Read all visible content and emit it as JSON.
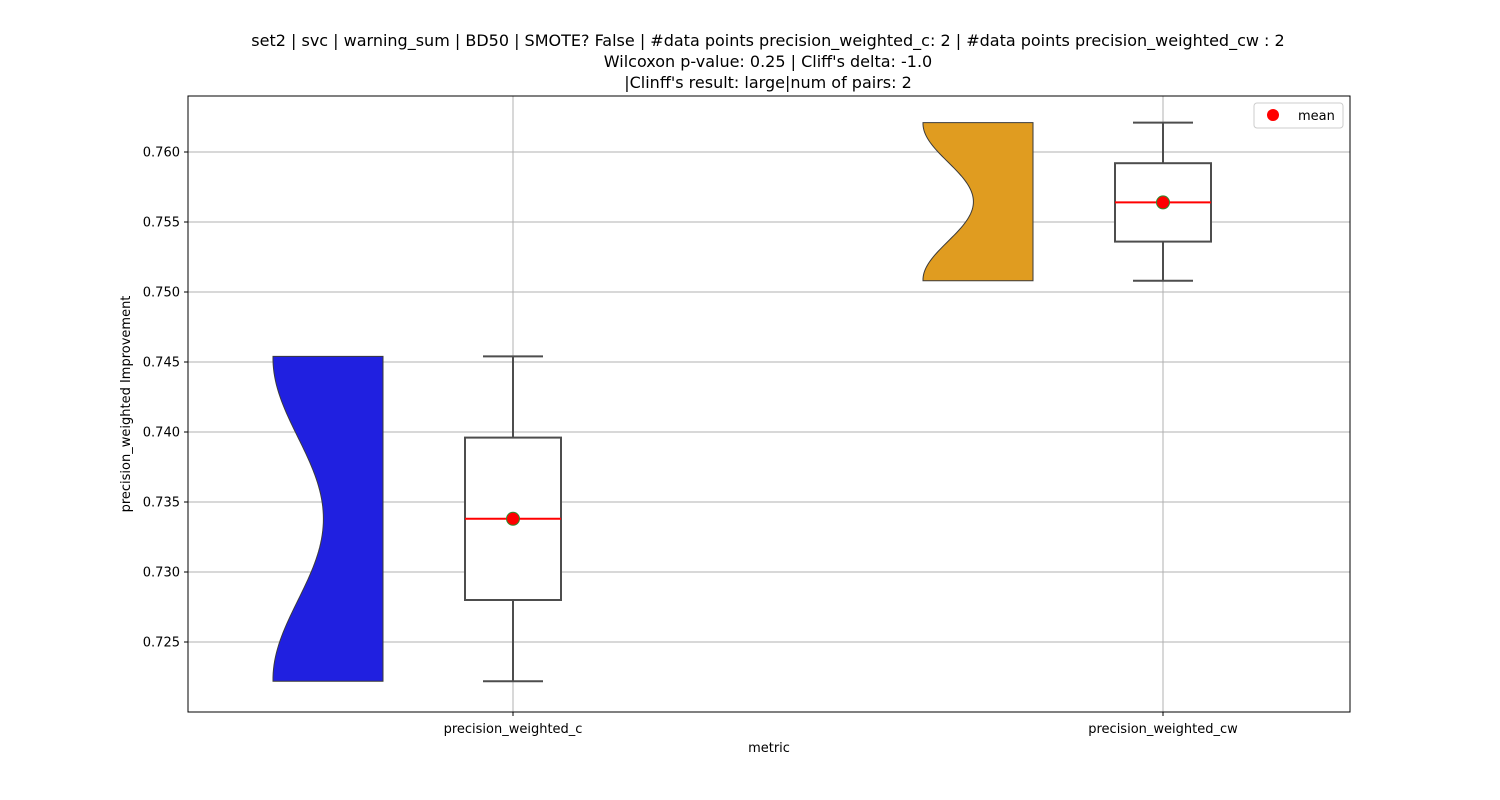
{
  "title_lines": [
    "set2 | svc | warning_sum | BD50 | SMOTE? False | #data points precision_weighted_c: 2 | #data points precision_weighted_cw : 2",
    "Wilcoxon p-value: 0.25 | Cliff's delta: -1.0",
    "|Clinff's result: large|num of pairs: 2"
  ],
  "chart_data": {
    "type": "violin+box",
    "xlabel": "metric",
    "ylabel": "precision_weighted Improvement",
    "categories": [
      "precision_weighted_c",
      "precision_weighted_cw"
    ],
    "ylim": [
      0.72,
      0.764
    ],
    "yticks": [
      0.725,
      0.73,
      0.735,
      0.74,
      0.745,
      0.75,
      0.755,
      0.76
    ],
    "ytick_labels": [
      "0.725",
      "0.730",
      "0.735",
      "0.740",
      "0.745",
      "0.750",
      "0.755",
      "0.760"
    ],
    "grid": true,
    "legend": {
      "placement": "top-right",
      "entries": [
        {
          "label": "mean",
          "color": "#ff0000"
        }
      ]
    },
    "series": [
      {
        "category": "precision_weighted_c",
        "violin_color": "#2020e0",
        "min": 0.7222,
        "q1": 0.728,
        "median": 0.7338,
        "q3": 0.7396,
        "max": 0.7454,
        "mean": 0.7338
      },
      {
        "category": "precision_weighted_cw",
        "violin_color": "#e09c20",
        "min": 0.7508,
        "q1": 0.7536,
        "median": 0.7564,
        "q3": 0.7592,
        "max": 0.7621,
        "mean": 0.7564
      }
    ],
    "colors": {
      "median_line": "#ff0000",
      "mean_marker": "#ff0000",
      "mean_edge": "#2e8b2e",
      "box_edge": "#4d4d4d",
      "grid": "#b0b0b0"
    }
  }
}
